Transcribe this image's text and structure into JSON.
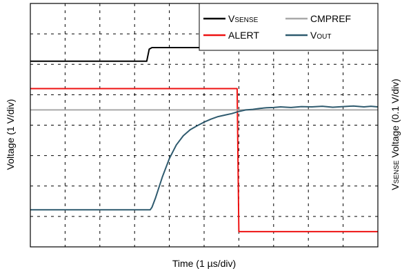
{
  "chart_data": {
    "type": "line",
    "xlabel": "Time (1 µs/div)",
    "ylabel_left": "Voltage (1 V/div)",
    "ylabel_right": {
      "main": "V",
      "sub": "SENSE",
      "rest": " Voltage (0.1 V/div)"
    },
    "grid": true,
    "grid_divisions": {
      "x": 10,
      "y": 8
    },
    "xlim": [
      0,
      10
    ],
    "ylim": [
      0,
      8
    ],
    "legend_position": "top-right",
    "legend": [
      {
        "key": "vsense",
        "main": "V",
        "sub": "SENSE"
      },
      {
        "key": "cmpref",
        "main": "CMPREF",
        "sub": ""
      },
      {
        "key": "alert",
        "main": "ALERT",
        "sub": ""
      },
      {
        "key": "vout",
        "main": "V",
        "sub": "OUT"
      }
    ],
    "series": [
      {
        "key": "vsense",
        "color": "#000000",
        "x": [
          0,
          3.35,
          3.42,
          3.5,
          10
        ],
        "y": [
          6.1,
          6.1,
          6.5,
          6.55,
          6.55
        ]
      },
      {
        "key": "alert",
        "color": "#ee1111",
        "x": [
          0,
          5.95,
          6.0,
          10
        ],
        "y": [
          5.2,
          5.2,
          0.5,
          0.5
        ]
      },
      {
        "key": "cmpref",
        "color": "#a8a8a8",
        "x": [
          0,
          10
        ],
        "y": [
          4.5,
          4.5
        ]
      },
      {
        "key": "vout",
        "color": "#2e5a6e",
        "x": [
          0,
          3.45,
          3.5,
          3.6,
          3.8,
          4.0,
          4.2,
          4.4,
          4.6,
          4.8,
          5.0,
          5.2,
          5.4,
          5.6,
          5.8,
          6.0,
          6.2,
          6.4,
          6.6,
          6.8,
          7.0,
          7.2,
          7.5,
          7.8,
          8.1,
          8.4,
          8.7,
          9.0,
          9.3,
          9.6,
          9.8,
          10.0
        ],
        "y": [
          1.22,
          1.22,
          1.3,
          1.6,
          2.3,
          2.9,
          3.35,
          3.65,
          3.85,
          3.98,
          4.1,
          4.2,
          4.28,
          4.33,
          4.38,
          4.45,
          4.5,
          4.52,
          4.55,
          4.57,
          4.58,
          4.6,
          4.58,
          4.61,
          4.6,
          4.62,
          4.59,
          4.61,
          4.63,
          4.6,
          4.62,
          4.6
        ]
      }
    ]
  }
}
